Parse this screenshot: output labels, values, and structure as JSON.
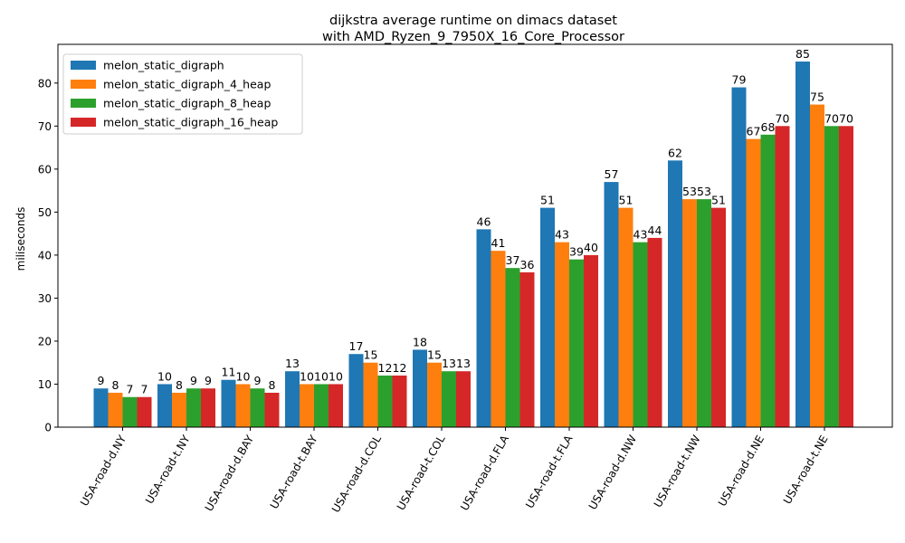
{
  "chart_data": {
    "type": "bar",
    "title_line1": "dijkstra average runtime on dimacs dataset",
    "title_line2": "with AMD_Ryzen_9_7950X_16_Core_Processor",
    "xlabel": "",
    "ylabel": "miliseconds",
    "ylim": [
      0,
      89
    ],
    "yticks": [
      0,
      10,
      20,
      30,
      40,
      50,
      60,
      70,
      80
    ],
    "grid": false,
    "legend_position": "top-left",
    "categories": [
      "USA-road-d.NY",
      "USA-road-t.NY",
      "USA-road-d.BAY",
      "USA-road-t.BAY",
      "USA-road-d.COL",
      "USA-road-t.COL",
      "USA-road-d.FLA",
      "USA-road-t.FLA",
      "USA-road-d.NW",
      "USA-road-t.NW",
      "USA-road-d.NE",
      "USA-road-t.NE"
    ],
    "series": [
      {
        "name": "melon_static_digraph",
        "color": "#1f77b4",
        "values": [
          9,
          10,
          11,
          13,
          17,
          18,
          46,
          51,
          57,
          62,
          79,
          85
        ]
      },
      {
        "name": "melon_static_digraph_4_heap",
        "color": "#ff7f0e",
        "values": [
          8,
          8,
          10,
          10,
          15,
          15,
          41,
          43,
          51,
          53,
          67,
          75
        ]
      },
      {
        "name": "melon_static_digraph_8_heap",
        "color": "#2ca02c",
        "values": [
          7,
          9,
          9,
          10,
          12,
          13,
          37,
          39,
          43,
          53,
          68,
          70
        ]
      },
      {
        "name": "melon_static_digraph_16_heap",
        "color": "#d62728",
        "values": [
          7,
          9,
          8,
          10,
          12,
          13,
          36,
          40,
          44,
          51,
          70,
          70
        ]
      }
    ]
  }
}
